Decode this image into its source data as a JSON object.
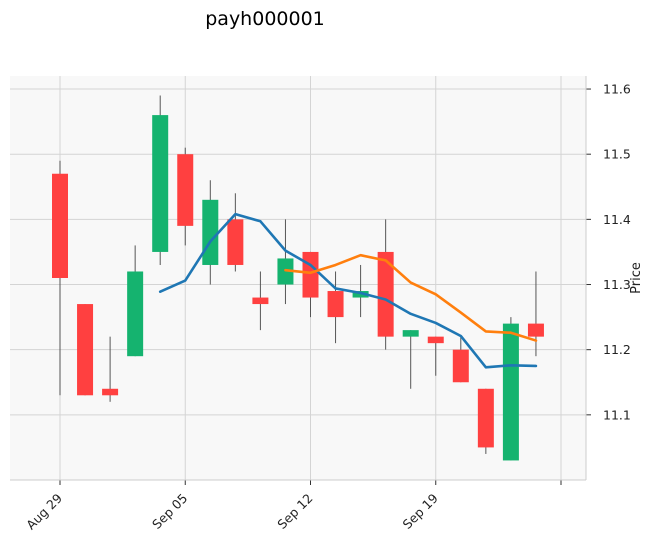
{
  "chart_data": {
    "type": "candlestick",
    "title": "payh000001",
    "xlabel": "",
    "ylabel": "Price",
    "ylim": [
      11.0,
      11.62
    ],
    "yticks": [
      "11.1",
      "11.2",
      "11.3",
      "11.4",
      "11.5",
      "11.6"
    ],
    "xticks": [
      {
        "label": "Aug 29",
        "index": 0
      },
      {
        "label": "Sep 05",
        "index": 5
      },
      {
        "label": "Sep 12",
        "index": 10
      },
      {
        "label": "Sep 19",
        "index": 15
      }
    ],
    "grid": true,
    "colors": {
      "up": "#15b36f",
      "down": "#ff4040",
      "ma_short": "#1f77b4",
      "ma_long": "#ff7f0e",
      "panel": "#f8f8f8",
      "grid": "#d4d4d4"
    },
    "candles": [
      {
        "open": 11.47,
        "high": 11.49,
        "low": 11.13,
        "close": 11.31
      },
      {
        "open": 11.27,
        "high": 11.27,
        "low": 11.13,
        "close": 11.13
      },
      {
        "open": 11.14,
        "high": 11.22,
        "low": 11.12,
        "close": 11.13
      },
      {
        "open": 11.19,
        "high": 11.36,
        "low": 11.19,
        "close": 11.32
      },
      {
        "open": 11.35,
        "high": 11.59,
        "low": 11.33,
        "close": 11.56
      },
      {
        "open": 11.5,
        "high": 11.51,
        "low": 11.36,
        "close": 11.39
      },
      {
        "open": 11.33,
        "high": 11.46,
        "low": 11.3,
        "close": 11.43
      },
      {
        "open": 11.4,
        "high": 11.44,
        "low": 11.32,
        "close": 11.33
      },
      {
        "open": 11.28,
        "high": 11.32,
        "low": 11.23,
        "close": 11.27
      },
      {
        "open": 11.3,
        "high": 11.4,
        "low": 11.27,
        "close": 11.34
      },
      {
        "open": 11.35,
        "high": 11.35,
        "low": 11.25,
        "close": 11.28
      },
      {
        "open": 11.29,
        "high": 11.32,
        "low": 11.21,
        "close": 11.25
      },
      {
        "open": 11.28,
        "high": 11.33,
        "low": 11.25,
        "close": 11.29
      },
      {
        "open": 11.35,
        "high": 11.4,
        "low": 11.2,
        "close": 11.22
      },
      {
        "open": 11.22,
        "high": 11.23,
        "low": 11.14,
        "close": 11.23
      },
      {
        "open": 11.22,
        "high": 11.22,
        "low": 11.16,
        "close": 11.21
      },
      {
        "open": 11.2,
        "high": 11.22,
        "low": 11.15,
        "close": 11.15
      },
      {
        "open": 11.14,
        "high": 11.14,
        "low": 11.04,
        "close": 11.05
      },
      {
        "open": 11.03,
        "high": 11.25,
        "low": 11.03,
        "close": 11.24
      },
      {
        "open": 11.24,
        "high": 11.32,
        "low": 11.19,
        "close": 11.22
      }
    ],
    "series": [
      {
        "values": [
          null,
          null,
          null,
          null,
          11.289,
          11.306,
          11.366,
          11.408,
          11.397,
          11.352,
          11.33,
          11.294,
          11.287,
          11.277,
          11.255,
          11.241,
          11.221,
          11.173,
          11.176,
          11.175
        ]
      },
      {
        "values": [
          null,
          null,
          null,
          null,
          null,
          null,
          null,
          null,
          null,
          11.322,
          11.318,
          11.33,
          11.345,
          11.337,
          11.303,
          11.285,
          11.257,
          11.228,
          11.226,
          11.214
        ]
      }
    ]
  }
}
